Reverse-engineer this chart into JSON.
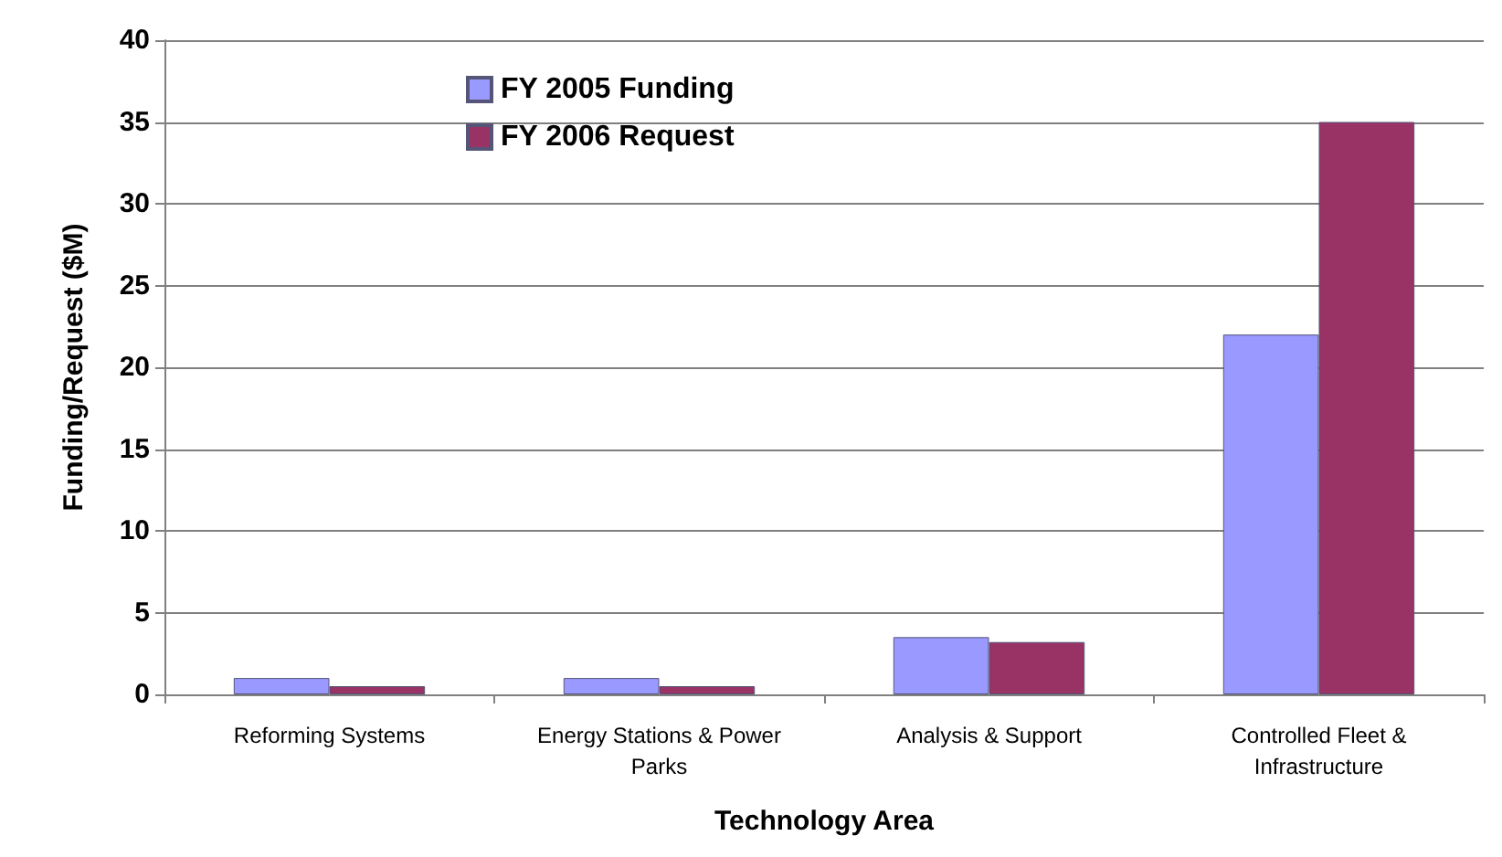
{
  "chart_data": {
    "type": "bar",
    "xlabel": "Technology Area",
    "ylabel": "Funding/Request ($M)",
    "categories": [
      "Reforming Systems",
      "Energy Stations & Power Parks",
      "Analysis & Support",
      "Controlled Fleet & Infrastructure"
    ],
    "series": [
      {
        "name": "FY 2005 Funding",
        "color": "#9999ff",
        "values": [
          1,
          1,
          3.5,
          22
        ]
      },
      {
        "name": "FY 2006 Request",
        "color": "#993366",
        "values": [
          0.5,
          0.5,
          3.2,
          35
        ]
      }
    ],
    "ylim": [
      0,
      40
    ],
    "yticks": [
      0,
      5,
      10,
      15,
      20,
      25,
      30,
      35,
      40
    ],
    "grid": "y",
    "legend": "top left"
  }
}
